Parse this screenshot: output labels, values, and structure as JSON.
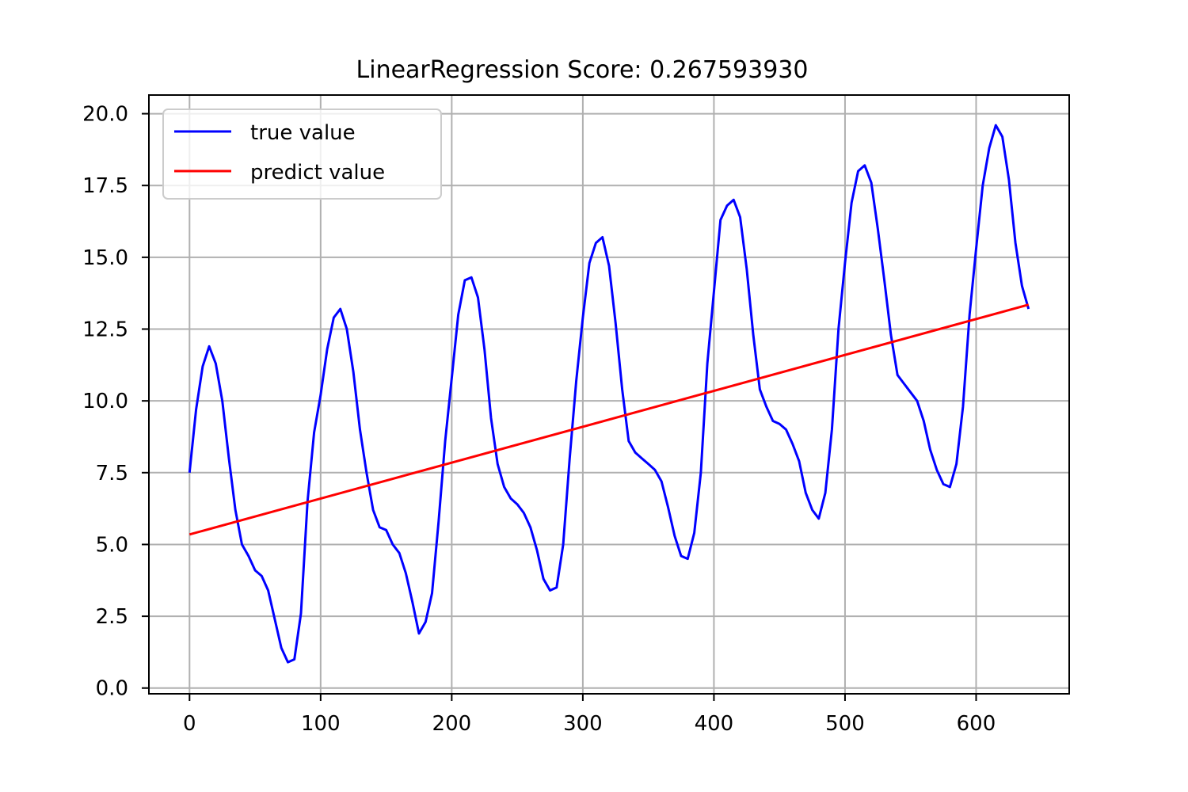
{
  "chart_data": {
    "type": "line",
    "title": "LinearRegression  Score:     0.267593930",
    "xlabel": "",
    "ylabel": "",
    "xlim": [
      -31,
      671
    ],
    "ylim": [
      -0.2,
      20.65
    ],
    "x_ticks": [
      0,
      100,
      200,
      300,
      400,
      500,
      600
    ],
    "y_ticks": [
      0.0,
      2.5,
      5.0,
      7.5,
      10.0,
      12.5,
      15.0,
      17.5,
      20.0
    ],
    "grid": true,
    "legend_position": "top-left",
    "series": [
      {
        "name": "true value",
        "color": "#0000ff",
        "x": [
          0,
          5,
          10,
          15,
          20,
          25,
          30,
          35,
          40,
          45,
          50,
          55,
          60,
          65,
          70,
          75,
          80,
          85,
          90,
          95,
          100,
          105,
          110,
          115,
          120,
          125,
          130,
          135,
          140,
          145,
          150,
          155,
          160,
          165,
          170,
          175,
          180,
          185,
          190,
          195,
          200,
          205,
          210,
          215,
          220,
          225,
          230,
          235,
          240,
          245,
          250,
          255,
          260,
          265,
          270,
          275,
          280,
          285,
          290,
          295,
          300,
          305,
          310,
          315,
          320,
          325,
          330,
          335,
          340,
          345,
          350,
          355,
          360,
          365,
          370,
          375,
          380,
          385,
          390,
          395,
          400,
          405,
          410,
          415,
          420,
          425,
          430,
          435,
          440,
          445,
          450,
          455,
          460,
          465,
          470,
          475,
          480,
          485,
          490,
          495,
          500,
          505,
          510,
          515,
          520,
          525,
          530,
          535,
          540,
          545,
          550,
          555,
          560,
          565,
          570,
          575,
          580,
          585,
          590,
          595,
          600,
          605,
          610,
          615,
          620,
          625,
          630,
          635,
          640
        ],
        "y": [
          7.5,
          9.7,
          11.2,
          11.9,
          11.3,
          10.0,
          8.0,
          6.2,
          5.0,
          4.6,
          4.1,
          3.9,
          3.4,
          2.4,
          1.4,
          0.9,
          1.0,
          2.6,
          6.5,
          8.9,
          10.2,
          11.8,
          12.9,
          13.2,
          12.5,
          11.0,
          9.0,
          7.5,
          6.2,
          5.6,
          5.5,
          5.0,
          4.7,
          4.0,
          3.0,
          1.9,
          2.3,
          3.3,
          5.8,
          8.6,
          10.8,
          13.0,
          14.2,
          14.3,
          13.6,
          11.8,
          9.4,
          7.8,
          7.0,
          6.6,
          6.4,
          6.1,
          5.6,
          4.8,
          3.8,
          3.4,
          3.5,
          5.0,
          8.0,
          10.7,
          12.9,
          14.8,
          15.5,
          15.7,
          14.7,
          12.7,
          10.4,
          8.6,
          8.2,
          8.0,
          7.8,
          7.6,
          7.2,
          6.3,
          5.3,
          4.6,
          4.5,
          5.4,
          7.5,
          11.3,
          13.8,
          16.3,
          16.8,
          17.0,
          16.4,
          14.6,
          12.3,
          10.4,
          9.8,
          9.3,
          9.2,
          9.0,
          8.5,
          7.9,
          6.8,
          6.2,
          5.9,
          6.8,
          9.0,
          12.5,
          14.8,
          16.9,
          18.0,
          18.2,
          17.6,
          16.0,
          14.2,
          12.3,
          10.9,
          10.6,
          10.3,
          10.0,
          9.3,
          8.3,
          7.6,
          7.1,
          7.0,
          7.8,
          9.8,
          13.0,
          15.3,
          17.5,
          18.8,
          19.6,
          19.2,
          17.7,
          15.5,
          14.0,
          13.2
        ]
      },
      {
        "name": "predict value",
        "color": "#ff0000",
        "x": [
          0,
          640
        ],
        "y": [
          5.35,
          13.35
        ]
      }
    ]
  }
}
